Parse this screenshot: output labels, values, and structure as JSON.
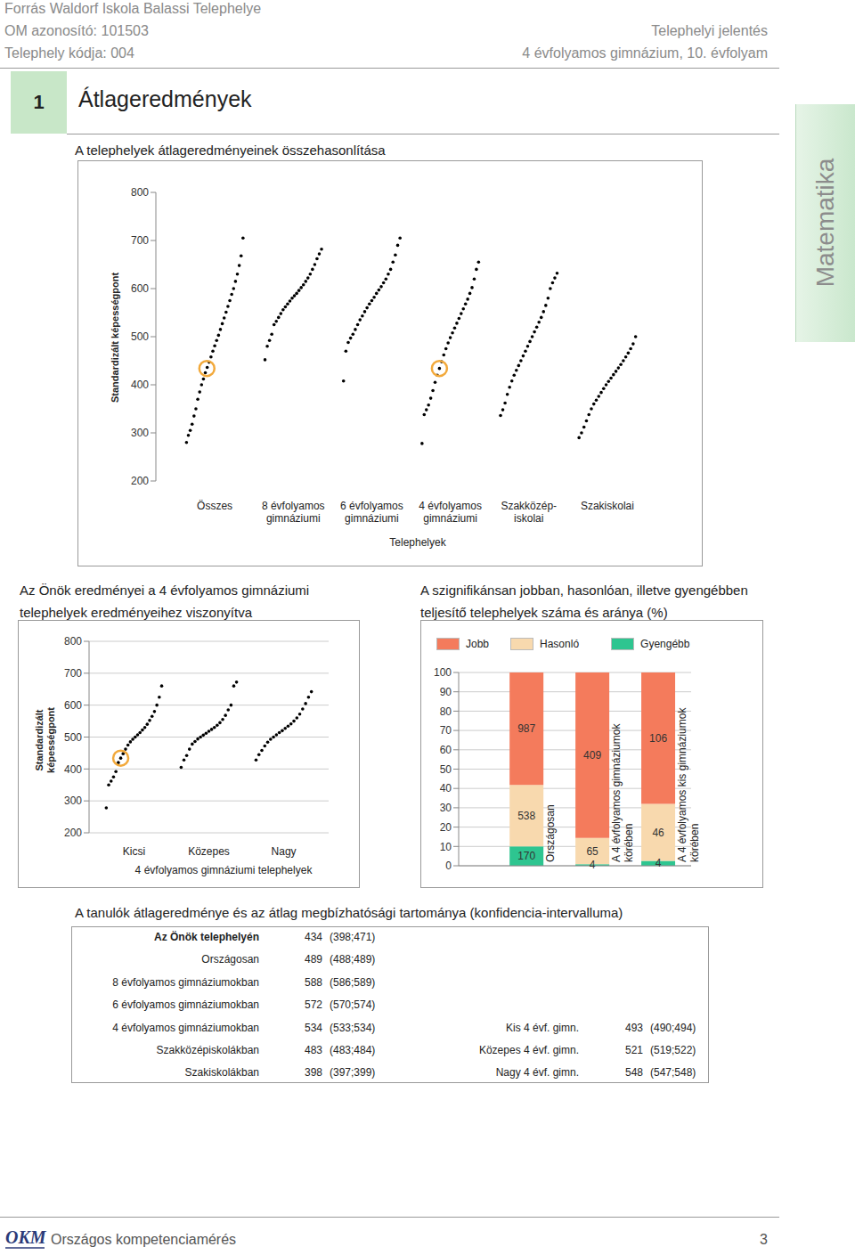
{
  "header": {
    "school": "Forrás Waldorf Iskola Balassi Telephelye",
    "om": "OM azonosító: 101503",
    "site_code": "Telephely kódja: 004",
    "report": "Telephelyi jelentés",
    "grade": "4 évfolyamos gimnázium, 10. évfolyam"
  },
  "section": {
    "number": "1",
    "title": "Átlageredmények"
  },
  "side_tab": "Matematika",
  "chart_data": [
    {
      "type": "scatter",
      "title": "A telephelyek átlageredményeinek összehasonlítása",
      "x_label": "Telephelyek",
      "y_label": "Standardizált képességpont",
      "categories": [
        "Összes",
        "8 évfolyamos\ngimnáziumi",
        "6 évfolyamos\ngimnáziumi",
        "4 évfolyamos\ngimnáziumi",
        "Szakközép-\niskolai",
        "Szakiskolai"
      ],
      "values": [
        [
          280,
          295,
          305,
          318,
          335,
          350,
          370,
          385,
          400,
          412,
          425,
          436,
          447,
          458,
          470,
          481,
          492,
          503,
          515,
          527,
          539,
          551,
          563,
          575,
          588,
          600,
          615,
          630,
          648,
          668,
          705
        ],
        [
          452,
          480,
          492,
          505,
          525,
          532,
          540,
          548,
          556,
          562,
          568,
          574,
          580,
          585,
          590,
          596,
          602,
          608,
          615,
          622,
          630,
          640,
          650,
          662,
          672,
          682
        ],
        [
          408,
          470,
          488,
          497,
          505,
          515,
          525,
          535,
          543,
          552,
          560,
          568,
          575,
          582,
          590,
          597,
          604,
          612,
          620,
          630,
          640,
          655,
          670,
          690,
          705
        ],
        [
          278,
          338,
          348,
          358,
          372,
          388,
          405,
          420,
          434,
          448,
          462,
          475,
          487,
          498,
          508,
          518,
          528,
          538,
          548,
          558,
          568,
          578,
          590,
          602,
          620,
          640,
          655
        ],
        [
          336,
          348,
          362,
          380,
          395,
          408,
          420,
          430,
          440,
          450,
          460,
          470,
          480,
          490,
          500,
          510,
          520,
          530,
          540,
          552,
          565,
          580,
          600,
          612,
          622,
          632
        ],
        [
          290,
          300,
          312,
          325,
          338,
          350,
          360,
          368,
          376,
          384,
          392,
          400,
          407,
          414,
          421,
          428,
          435,
          442,
          450,
          458,
          466,
          475,
          485,
          500
        ]
      ],
      "color": "#000000",
      "highlight": {
        "values": [
          434,
          null,
          null,
          434,
          null,
          null
        ],
        "color": "#f2a93b"
      },
      "ylim": [
        200,
        800
      ],
      "yticks": [
        200,
        300,
        400,
        500,
        600,
        700,
        800
      ],
      "grid": false
    },
    {
      "type": "scatter",
      "title": "Az Önök eredményei a 4 évfolyamos gimnáziumi\ntelephelyek eredményeihez viszonyítva",
      "x_label": "4 évfolyamos gimnáziumi telephelyek",
      "y_label": "Standardizált\nképességpont",
      "categories": [
        "Kicsi",
        "Közepes",
        "Nagy"
      ],
      "values": [
        [
          278,
          350,
          362,
          375,
          392,
          420,
          434,
          448,
          462,
          475,
          485,
          493,
          500,
          507,
          514,
          522,
          530,
          540,
          552,
          565,
          580,
          600,
          625,
          660
        ],
        [
          405,
          428,
          442,
          462,
          478,
          486,
          494,
          500,
          506,
          512,
          518,
          524,
          530,
          537,
          545,
          555,
          568,
          585,
          600,
          660,
          672
        ],
        [
          428,
          445,
          458,
          472,
          484,
          493,
          500,
          507,
          514,
          520,
          527,
          534,
          541,
          550,
          560,
          572,
          588,
          605,
          625,
          642
        ]
      ],
      "color": "#000000",
      "highlight": {
        "values": [
          434,
          null,
          null
        ],
        "color": "#f2a93b"
      },
      "ylim": [
        200,
        800
      ],
      "yticks": [
        200,
        300,
        400,
        500,
        600,
        700,
        800
      ],
      "grid": true
    },
    {
      "type": "bar",
      "title": "A szignifikánsan jobban, hasonlóan, illetve gyengébben\nteljesítő telephelyek száma és aránya (%)",
      "stacked": true,
      "legend": "top",
      "data_labels": true,
      "categories": [
        "Országosan",
        "A 4 évfolyamos gimnáziumok\nkörében",
        "A 4 évfolyamos kis gimnáziumok\nkörében"
      ],
      "series": [
        {
          "name": "Jobb",
          "color": "#f47b5c",
          "values": [
            58.23,
            85.56,
            67.95
          ],
          "counts": [
            987,
            409,
            106
          ]
        },
        {
          "name": "Hasonló",
          "color": "#f8d9ae",
          "values": [
            31.74,
            13.6,
            29.49
          ],
          "counts": [
            538,
            65,
            46
          ]
        },
        {
          "name": "Gyengébb",
          "color": "#2ec590",
          "values": [
            10.03,
            0.84,
            2.56
          ],
          "counts": [
            170,
            4,
            4
          ]
        }
      ],
      "ylim": [
        0,
        100
      ],
      "yticks": [
        0,
        10,
        20,
        30,
        40,
        50,
        60,
        70,
        80,
        90,
        100
      ],
      "grid": true
    }
  ],
  "table": {
    "title": "A tanulók átlageredménye és az átlag megbízhatósági tartománya (konfidencia-intervalluma)",
    "rows": [
      {
        "label": "Az Önök telephelyén",
        "mean": 434,
        "ci": "(398;471)"
      },
      {
        "label": "Országosan",
        "mean": 489,
        "ci": "(488;489)"
      },
      {
        "label": "8 évfolyamos gimnáziumokban",
        "mean": 588,
        "ci": "(586;589)"
      },
      {
        "label": "6 évfolyamos gimnáziumokban",
        "mean": 572,
        "ci": "(570;574)"
      },
      {
        "label": "4 évfolyamos gimnáziumokban",
        "mean": 534,
        "ci": "(533;534)"
      },
      {
        "label": "Szakközépiskolákban",
        "mean": 483,
        "ci": "(483;484)"
      },
      {
        "label": "Szakiskolákban",
        "mean": 398,
        "ci": "(397;399)"
      }
    ],
    "side_rows": [
      {
        "label": "Kis 4 évf. gimn.",
        "mean": 493,
        "ci": "(490;494)"
      },
      {
        "label": "Közepes 4 évf. gimn.",
        "mean": 521,
        "ci": "(519;522)"
      },
      {
        "label": "Nagy 4 évf. gimn.",
        "mean": 548,
        "ci": "(547;548)"
      }
    ]
  },
  "footer": {
    "logo": "OKM",
    "text": "Országos kompetenciamérés",
    "page": "3"
  }
}
